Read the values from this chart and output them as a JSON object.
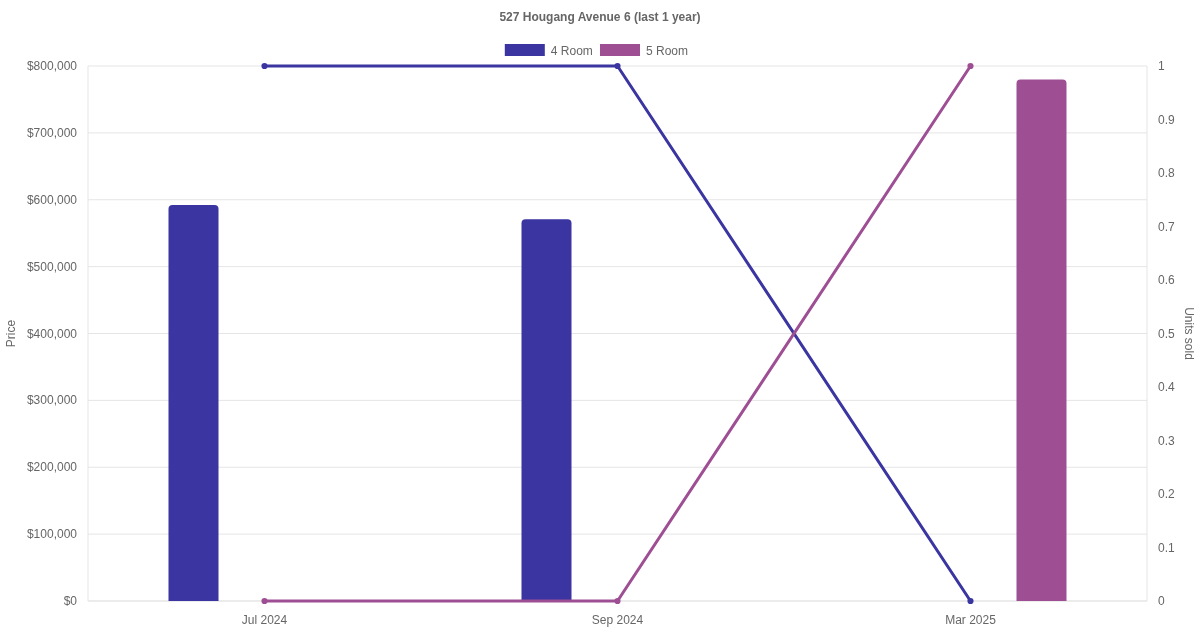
{
  "chart_data": {
    "type": "bar",
    "title": "527 Hougang Avenue 6 (last 1 year)",
    "categories": [
      "Jul 2024",
      "Sep 2024",
      "Mar 2025"
    ],
    "series": [
      {
        "name": "4 Room",
        "color": "#3a35a0",
        "values": [
          592000,
          571000,
          null
        ]
      },
      {
        "name": "5 Room",
        "color": "#9e4f94",
        "values": [
          null,
          null,
          780000
        ]
      },
      {
        "type": "line",
        "axis": "y2",
        "color": "#3a35a0",
        "values": [
          1,
          1,
          0
        ]
      },
      {
        "type": "line",
        "axis": "y2",
        "color": "#9e4f94",
        "values": [
          0,
          0,
          1
        ]
      }
    ],
    "ylabel": "Price",
    "y2label": "Units sold",
    "ylim": [
      0,
      800000
    ],
    "yticks": [
      {
        "value": 0,
        "label": "$0"
      },
      {
        "value": 100000,
        "label": "$100,000"
      },
      {
        "value": 200000,
        "label": "$200,000"
      },
      {
        "value": 300000,
        "label": "$300,000"
      },
      {
        "value": 400000,
        "label": "$400,000"
      },
      {
        "value": 500000,
        "label": "$500,000"
      },
      {
        "value": 600000,
        "label": "$600,000"
      },
      {
        "value": 700000,
        "label": "$700,000"
      },
      {
        "value": 800000,
        "label": "$800,000"
      }
    ],
    "y2lim": [
      0,
      1
    ],
    "y2ticks": [
      0,
      0.1,
      0.2,
      0.3,
      0.4,
      0.5,
      0.6,
      0.7,
      0.8,
      0.9,
      1
    ],
    "grid": "y",
    "legend": "top",
    "marker": "circle",
    "line_style": "solid"
  }
}
